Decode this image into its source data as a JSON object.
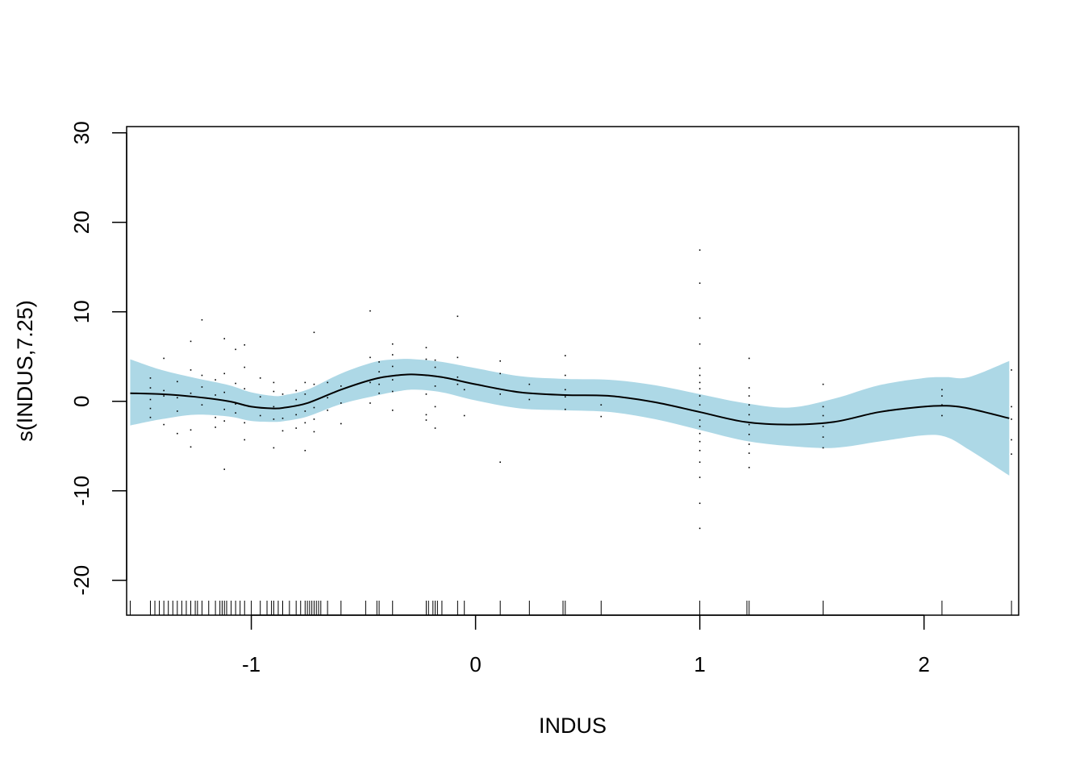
{
  "chart_data": {
    "type": "line",
    "xlabel": "INDUS",
    "ylabel": "s(INDUS,7.25)",
    "xlim": [
      -1.556,
      2.422
    ],
    "ylim": [
      -23.9,
      30.7
    ],
    "xticks": [
      -1,
      0,
      1,
      2
    ],
    "xtick_labels": [
      "-1",
      "0",
      "1",
      "2"
    ],
    "yticks": [
      -20,
      -10,
      0,
      10,
      20,
      30
    ],
    "ytick_labels": [
      "-20",
      "-10",
      "0",
      "10",
      "20",
      "30"
    ],
    "grid": false,
    "colors": {
      "band": "#add8e6",
      "line": "#000000",
      "points": "#000000"
    },
    "series": [
      {
        "x": [
          -1.54,
          -1.4,
          -1.25,
          -1.1,
          -1.0,
          -0.9,
          -0.85,
          -0.75,
          -0.6,
          -0.45,
          -0.35,
          -0.27,
          -0.15,
          0.0,
          0.2,
          0.4,
          0.6,
          0.8,
          1.0,
          1.2,
          1.4,
          1.6,
          1.8,
          2.0,
          2.1,
          2.2,
          2.38
        ],
        "y": [
          0.9,
          0.8,
          0.5,
          0.0,
          -0.6,
          -0.8,
          -0.7,
          -0.2,
          1.3,
          2.5,
          2.9,
          3.0,
          2.7,
          1.9,
          1.0,
          0.7,
          0.6,
          -0.1,
          -1.2,
          -2.3,
          -2.6,
          -2.3,
          -1.2,
          -0.6,
          -0.5,
          -0.8,
          -1.9
        ],
        "upper": [
          4.7,
          3.5,
          2.6,
          1.8,
          1.0,
          0.6,
          0.7,
          1.3,
          3.1,
          4.4,
          4.7,
          4.7,
          4.4,
          3.7,
          2.8,
          2.5,
          2.4,
          1.8,
          0.8,
          -0.2,
          -0.7,
          0.3,
          1.8,
          2.6,
          2.7,
          2.7,
          4.5
        ],
        "lower": [
          -2.7,
          -2.0,
          -1.5,
          -1.7,
          -2.2,
          -2.3,
          -2.2,
          -1.7,
          -0.3,
          0.6,
          1.1,
          1.3,
          1.0,
          0.1,
          -0.8,
          -1.0,
          -1.2,
          -2.0,
          -3.2,
          -4.4,
          -5.0,
          -5.2,
          -4.5,
          -3.8,
          -4.0,
          -5.4,
          -8.3
        ]
      }
    ],
    "partial_residuals": [
      {
        "x": -1.45,
        "y": [
          1.5,
          0.2,
          -0.8,
          2.6,
          -1.8
        ]
      },
      {
        "x": -1.39,
        "y": [
          4.8,
          1.2,
          -2.6,
          0.6
        ]
      },
      {
        "x": -1.33,
        "y": [
          -3.6,
          0.4,
          2.2,
          -1.1
        ]
      },
      {
        "x": -1.27,
        "y": [
          3.5,
          -5.1,
          6.7,
          0.9,
          -3.2
        ]
      },
      {
        "x": -1.22,
        "y": [
          9.1,
          1.6,
          -0.4,
          2.9
        ]
      },
      {
        "x": -1.16,
        "y": [
          -1.8,
          0.7,
          2.4,
          -2.9
        ]
      },
      {
        "x": -1.12,
        "y": [
          7.0,
          -7.6,
          3.1,
          -2.2,
          1.0,
          -0.9
        ]
      },
      {
        "x": -1.07,
        "y": [
          5.8,
          -1.3,
          2.0,
          -0.3
        ]
      },
      {
        "x": -1.03,
        "y": [
          6.3,
          3.8,
          -4.3,
          1.4,
          -2.4
        ]
      },
      {
        "x": -0.96,
        "y": [
          2.6,
          -1.6,
          0.5
        ]
      },
      {
        "x": -0.9,
        "y": [
          -5.2,
          2.1,
          -2.0,
          -0.6,
          1.1
        ]
      },
      {
        "x": -0.86,
        "y": [
          -3.3,
          0.8,
          -1.9
        ]
      },
      {
        "x": -0.8,
        "y": [
          -1.5,
          1.2,
          -3.0,
          0.2
        ]
      },
      {
        "x": -0.76,
        "y": [
          2.1,
          -5.5,
          -1.1,
          0.8,
          -2.4
        ]
      },
      {
        "x": -0.72,
        "y": [
          7.7,
          -3.4,
          1.9,
          -0.7,
          -2.0
        ]
      },
      {
        "x": -0.66,
        "y": [
          -1.0,
          2.1,
          0.4
        ]
      },
      {
        "x": -0.6,
        "y": [
          -2.5,
          1.7,
          -0.2
        ]
      },
      {
        "x": -0.47,
        "y": [
          10.1,
          2.1,
          4.9,
          -0.2
        ]
      },
      {
        "x": -0.43,
        "y": [
          4.4,
          1.9,
          0.9,
          3.3,
          2.6
        ]
      },
      {
        "x": -0.37,
        "y": [
          6.4,
          3.9,
          1.1,
          5.2,
          2.4,
          -1.0
        ]
      },
      {
        "x": -0.22,
        "y": [
          6.0,
          0.8,
          -1.5,
          4.7,
          2.9,
          -2.1
        ]
      },
      {
        "x": -0.18,
        "y": [
          4.6,
          -3.0,
          1.7,
          3.8,
          -0.6
        ]
      },
      {
        "x": -0.08,
        "y": [
          9.5,
          4.9,
          2.7,
          1.9
        ]
      },
      {
        "x": -0.05,
        "y": [
          -1.6,
          1.3
        ]
      },
      {
        "x": 0.11,
        "y": [
          4.5,
          0.8,
          -6.8,
          3.1
        ]
      },
      {
        "x": 0.24,
        "y": [
          1.9,
          0.2
        ]
      },
      {
        "x": 0.4,
        "y": [
          5.1,
          2.9,
          1.3,
          -0.9,
          0.5
        ]
      },
      {
        "x": 0.56,
        "y": [
          -0.4,
          -1.7
        ]
      },
      {
        "x": 1.0,
        "y": [
          16.9,
          13.2,
          9.3,
          6.4,
          3.7,
          2.9,
          2.1,
          1.4,
          0.6,
          -0.4,
          -1.2,
          -2.1,
          -2.8,
          -3.6,
          -4.5,
          -5.5,
          -6.8,
          -8.5,
          -11.4,
          -14.2
        ]
      },
      {
        "x": 1.22,
        "y": [
          4.8,
          1.5,
          0.6,
          -0.4,
          -1.5,
          -2.6,
          -3.7,
          -4.8,
          -5.8,
          -7.4
        ]
      },
      {
        "x": 1.55,
        "y": [
          1.9,
          -0.6,
          -1.6,
          -2.8,
          -4.0,
          -5.2
        ]
      },
      {
        "x": 2.08,
        "y": [
          1.3,
          0.6,
          -0.4,
          -1.6
        ]
      },
      {
        "x": 2.39,
        "y": [
          3.5,
          -0.6,
          -2.0,
          -4.3,
          -5.9
        ]
      }
    ],
    "rug": [
      -1.54,
      -1.45,
      -1.43,
      -1.41,
      -1.39,
      -1.37,
      -1.35,
      -1.33,
      -1.31,
      -1.29,
      -1.27,
      -1.25,
      -1.24,
      -1.22,
      -1.19,
      -1.16,
      -1.14,
      -1.13,
      -1.12,
      -1.11,
      -1.09,
      -1.07,
      -1.05,
      -1.03,
      -1.0,
      -0.96,
      -0.93,
      -0.91,
      -0.9,
      -0.88,
      -0.86,
      -0.83,
      -0.8,
      -0.78,
      -0.76,
      -0.75,
      -0.74,
      -0.73,
      -0.72,
      -0.71,
      -0.7,
      -0.69,
      -0.66,
      -0.6,
      -0.49,
      -0.44,
      -0.43,
      -0.37,
      -0.22,
      -0.21,
      -0.19,
      -0.18,
      -0.17,
      -0.15,
      -0.08,
      -0.05,
      0.11,
      0.24,
      0.39,
      0.4,
      0.56,
      1.0,
      1.21,
      1.22,
      1.55,
      2.08,
      2.39
    ]
  }
}
